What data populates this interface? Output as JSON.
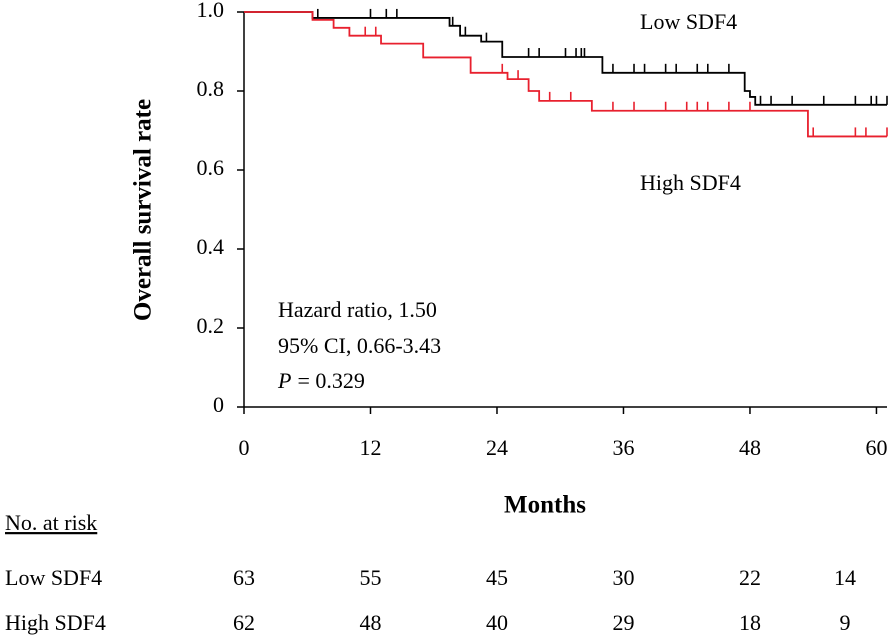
{
  "chart_data": {
    "type": "km",
    "ylabel": "Overall survival rate",
    "xlabel": "Months",
    "xlim": [
      0,
      61
    ],
    "ylim": [
      0,
      1
    ],
    "xticks": [
      0,
      12,
      24,
      36,
      48,
      60
    ],
    "yticks": [
      0,
      {
        "value": 0.2,
        "label": "0.2"
      },
      {
        "value": 0.4,
        "label": "0.4"
      },
      {
        "value": 0.6,
        "label": "0.6"
      },
      {
        "value": 0.8,
        "label": "0.8"
      },
      {
        "value": 1,
        "label": "1.0"
      }
    ],
    "series": [
      {
        "name": "Low SDF4",
        "color": "#000000",
        "x": [
          0,
          6.5,
          19.5,
          20.5,
          22.5,
          24.5,
          34,
          47.5,
          48,
          48.5,
          61
        ],
        "values": [
          1.0,
          0.985,
          0.965,
          0.94,
          0.925,
          0.886,
          0.846,
          0.8,
          0.785,
          0.765,
          0.765
        ],
        "censored": {
          "x": [
            7,
            12,
            13.5,
            14.5,
            19.8,
            21,
            23,
            27,
            28,
            30.5,
            31.5,
            32,
            32.3,
            35,
            37,
            38,
            40,
            41,
            43,
            44,
            46,
            49,
            50,
            52,
            55,
            58,
            59.5,
            60,
            61
          ],
          "y": [
            0.985,
            0.985,
            0.985,
            0.985,
            0.965,
            0.94,
            0.925,
            0.886,
            0.886,
            0.886,
            0.886,
            0.886,
            0.886,
            0.846,
            0.846,
            0.846,
            0.846,
            0.846,
            0.846,
            0.846,
            0.846,
            0.765,
            0.765,
            0.765,
            0.765,
            0.765,
            0.765,
            0.765,
            0.765
          ]
        }
      },
      {
        "name": "High SDF4",
        "color": "#e8202e",
        "x": [
          0,
          6.5,
          8.5,
          10,
          13,
          17,
          21.5,
          25,
          27,
          28,
          33,
          53.5,
          61
        ],
        "values": [
          1.0,
          0.98,
          0.96,
          0.94,
          0.92,
          0.885,
          0.846,
          0.83,
          0.8,
          0.775,
          0.75,
          0.685,
          0.685
        ],
        "censored": {
          "x": [
            11.5,
            12.5,
            24.5,
            26,
            29,
            31,
            35,
            37,
            40,
            42,
            43,
            44,
            46,
            48,
            54,
            58,
            59,
            61
          ],
          "y": [
            0.94,
            0.94,
            0.846,
            0.83,
            0.775,
            0.775,
            0.75,
            0.75,
            0.75,
            0.75,
            0.75,
            0.75,
            0.75,
            0.75,
            0.685,
            0.685,
            0.685,
            0.685
          ]
        }
      }
    ],
    "annotations": [
      "Hazard ratio, 1.50",
      "95% CI, 0.66-3.43"
    ],
    "p_annotation": {
      "italic": "P",
      "text": "= 0.329"
    },
    "risk_table": {
      "title": "No. at risk",
      "rows": [
        {
          "name": "Low SDF4",
          "counts": [
            63,
            55,
            45,
            30,
            22,
            14
          ]
        },
        {
          "name": "High SDF4",
          "counts": [
            62,
            48,
            40,
            29,
            18,
            9
          ]
        }
      ]
    }
  }
}
